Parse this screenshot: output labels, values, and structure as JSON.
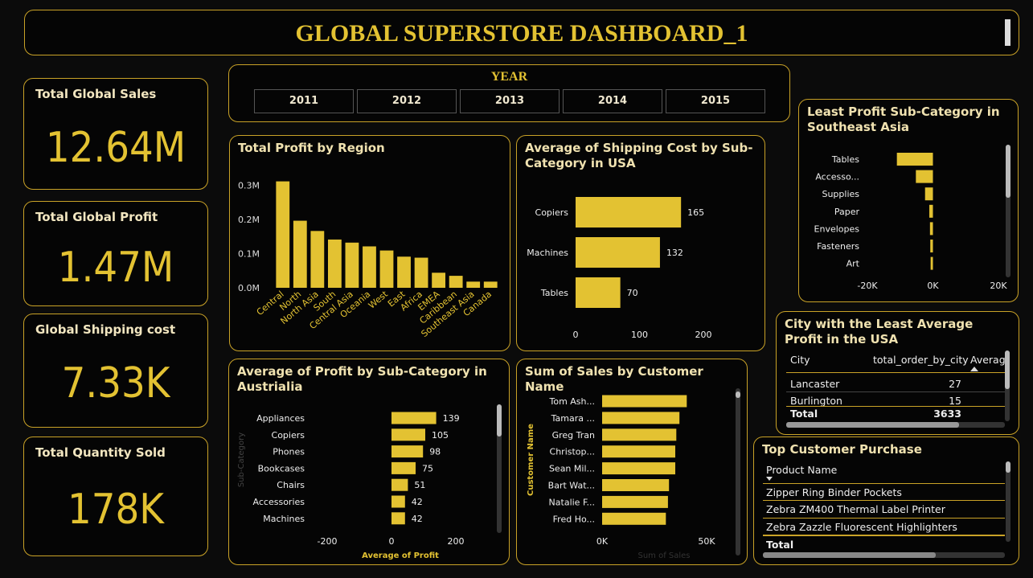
{
  "header": {
    "title": "GLOBAL SUPERSTORE DASHBOARD_1"
  },
  "kpis": [
    {
      "label": "Total Global Sales",
      "value": "12.64M"
    },
    {
      "label": "Total Global Profit",
      "value": "1.47M"
    },
    {
      "label": "Global Shipping cost",
      "value": "7.33K"
    },
    {
      "label": "Total Quantity Sold",
      "value": "178K"
    }
  ],
  "year_slicer": {
    "label": "YEAR",
    "years": [
      "2011",
      "2012",
      "2013",
      "2014",
      "2015"
    ]
  },
  "colors": {
    "accent": "#e3c232",
    "border": "#c9a227",
    "background": "#050505"
  },
  "chart_data": [
    {
      "id": "profit-by-region",
      "type": "bar",
      "title": "Total Profit by Region",
      "categories": [
        "Central",
        "North",
        "North Asia",
        "South",
        "Central Asia",
        "Oceania",
        "West",
        "East",
        "Africa",
        "EMEA",
        "Caribbean",
        "Southeast Asia",
        "Canada"
      ],
      "values": [
        0.311,
        0.196,
        0.166,
        0.141,
        0.132,
        0.121,
        0.109,
        0.091,
        0.088,
        0.044,
        0.035,
        0.018,
        0.018
      ],
      "ylim": [
        0,
        0.35
      ],
      "yticks": [
        "0.0M",
        "0.1M",
        "0.2M",
        "0.3M"
      ],
      "grid": false
    },
    {
      "id": "shipping-usa",
      "type": "bar",
      "orientation": "horizontal",
      "title": "Average of Shipping Cost by Sub-Category in USA",
      "categories": [
        "Copiers",
        "Machines",
        "Tables"
      ],
      "values": [
        165,
        132,
        70
      ],
      "value_labels": [
        "165",
        "132",
        "70"
      ],
      "xlim": [
        0,
        200
      ],
      "xticks": [
        "0",
        "100",
        "200"
      ]
    },
    {
      "id": "least-profit-sea",
      "type": "bar",
      "orientation": "horizontal",
      "title": "Least Profit Sub-Category in Southeast Asia",
      "categories": [
        "Tables",
        "Accesso...",
        "Supplies",
        "Paper",
        "Envelopes",
        "Fasteners",
        "Art"
      ],
      "values": [
        -11000,
        -5200,
        -2400,
        -1100,
        -900,
        -800,
        -700
      ],
      "xlim": [
        -20000,
        20000
      ],
      "xticks": [
        "-20K",
        "0K",
        "20K"
      ]
    },
    {
      "id": "profit-australia",
      "type": "bar",
      "orientation": "horizontal",
      "title": "Average of Profit by Sub-Category in Austrialia",
      "categories": [
        "Appliances",
        "Copiers",
        "Phones",
        "Bookcases",
        "Chairs",
        "Accessories",
        "Machines"
      ],
      "values": [
        139,
        105,
        98,
        75,
        51,
        42,
        42
      ],
      "value_labels": [
        "139",
        "105",
        "98",
        "75",
        "51",
        "42",
        "42"
      ],
      "xlim": [
        -200,
        200
      ],
      "xticks": [
        "-200",
        "0",
        "200"
      ],
      "xlabel": "Average of Profit",
      "ylabel": "Sub-Category"
    },
    {
      "id": "sales-by-customer",
      "type": "bar",
      "orientation": "horizontal",
      "title": "Sum of Sales by Customer Name",
      "categories": [
        "Tom Ash...",
        "Tamara ...",
        "Greg Tran",
        "Christop...",
        "Sean Mil...",
        "Bart Wat...",
        "Natalie F...",
        "Fred Ho..."
      ],
      "values": [
        40500,
        37000,
        35500,
        35000,
        35000,
        32000,
        31500,
        30500
      ],
      "xlim": [
        0,
        50000
      ],
      "xticks": [
        "0K",
        "50K"
      ],
      "xlabel": "Sum of Sales",
      "ylabel": "Customer Name"
    }
  ],
  "city_table": {
    "title": "City with the Least Average Profit in the USA",
    "columns": [
      "City",
      "total_order_by_city",
      "Average"
    ],
    "rows": [
      {
        "city": "Lancaster",
        "orders": "27"
      },
      {
        "city": "Burlington",
        "orders": "15"
      }
    ],
    "total_label": "Total",
    "total_value": "3633"
  },
  "customer_table": {
    "title": "Top Customer Purchase",
    "column": "Product Name",
    "rows": [
      "Zipper Ring Binder Pockets",
      "Zebra ZM400 Thermal Label Printer",
      "Zebra Zazzle Fluorescent Highlighters"
    ],
    "total_label": "Total"
  }
}
